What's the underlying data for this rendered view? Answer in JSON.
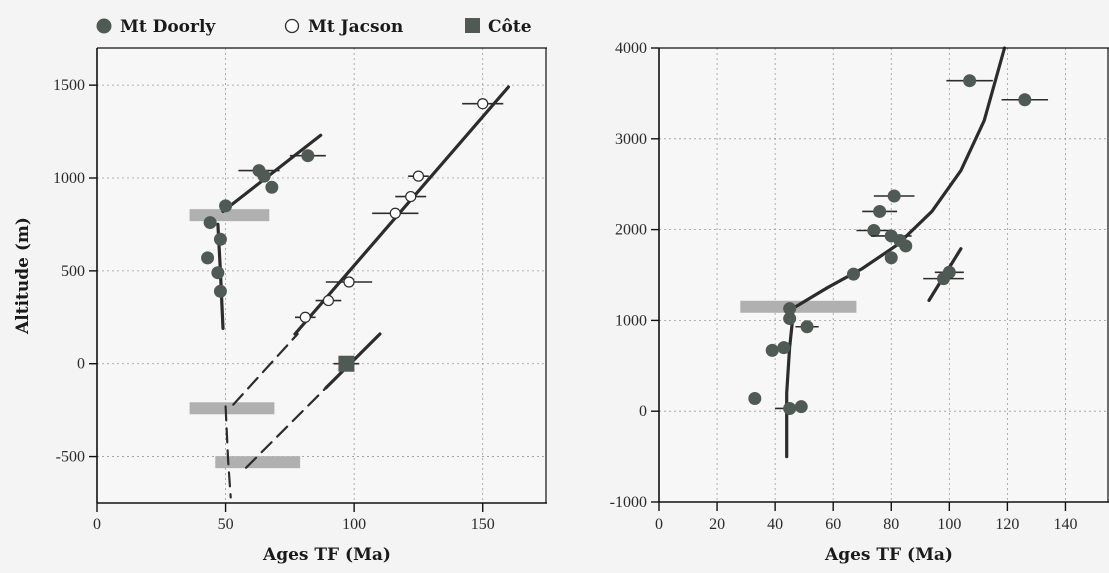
{
  "legend": [
    {
      "label": "Mt Doorly",
      "marker": "filled-circle"
    },
    {
      "label": "Mt Jacson",
      "marker": "open-circle"
    },
    {
      "label": "Côte",
      "marker": "filled-square"
    }
  ],
  "colors": {
    "point": "#4f5a55",
    "line": "#2c2c2c",
    "band": "#b0b0b0",
    "grid": "#9a9a9a"
  },
  "chart_data": [
    {
      "type": "scatter",
      "xlabel": "Ages TF (Ma)",
      "ylabel": "Altitude (m)",
      "xlim": [
        0,
        175
      ],
      "ylim": [
        -750,
        1700
      ],
      "xticks": [
        0,
        50,
        100,
        150
      ],
      "yticks": [
        -500,
        0,
        500,
        1000,
        1500
      ],
      "grid": true,
      "legend_position": "top",
      "series": [
        {
          "name": "Mt Doorly",
          "marker": "filled-circle",
          "points": [
            [
              63,
              1040,
              8
            ],
            [
              65,
              1010,
              0
            ],
            [
              68,
              950,
              0
            ],
            [
              82,
              1120,
              7
            ],
            [
              50,
              850,
              0
            ],
            [
              44,
              760,
              0
            ],
            [
              48,
              670,
              0
            ],
            [
              43,
              570,
              0
            ],
            [
              47,
              490,
              0
            ],
            [
              48,
              390,
              0
            ]
          ]
        },
        {
          "name": "Mt Jacson",
          "marker": "open-circle",
          "points": [
            [
              150,
              1400,
              8
            ],
            [
              125,
              1010,
              4
            ],
            [
              122,
              900,
              6
            ],
            [
              116,
              810,
              9
            ],
            [
              98,
              440,
              9
            ],
            [
              90,
              340,
              5
            ],
            [
              81,
              250,
              4
            ]
          ]
        },
        {
          "name": "Côte",
          "marker": "filled-square",
          "points": [
            [
              97,
              0,
              5
            ]
          ]
        }
      ],
      "bands": [
        [
          36,
          67,
          800
        ],
        [
          36,
          69,
          -240
        ],
        [
          46,
          79,
          -530
        ]
      ],
      "lines": [
        {
          "style": "solid",
          "points": [
            [
              49,
              190
            ],
            [
              48,
              500
            ],
            [
              47,
              750
            ]
          ]
        },
        {
          "style": "solid",
          "points": [
            [
              49,
              820
            ],
            [
              87,
              1230
            ]
          ]
        },
        {
          "style": "solid",
          "points": [
            [
              77,
              160
            ],
            [
              160,
              1490
            ]
          ]
        },
        {
          "style": "solid",
          "points": [
            [
              89,
              -130
            ],
            [
              110,
              160
            ]
          ]
        },
        {
          "style": "dashed",
          "points": [
            [
              53,
              -220
            ],
            [
              78,
              160
            ]
          ]
        },
        {
          "style": "dashed",
          "points": [
            [
              58,
              -560
            ],
            [
              89,
              -130
            ]
          ]
        },
        {
          "style": "dashed",
          "points": [
            [
              50,
              -230
            ],
            [
              51,
              -520
            ],
            [
              52,
              -720
            ]
          ]
        }
      ]
    },
    {
      "type": "scatter",
      "xlabel": "Ages TF (Ma)",
      "ylabel": "",
      "xlim": [
        0,
        155
      ],
      "ylim": [
        -1000,
        4000
      ],
      "xticks": [
        0,
        20,
        40,
        60,
        80,
        100,
        120,
        140
      ],
      "yticks": [
        -1000,
        0,
        1000,
        2000,
        3000,
        4000
      ],
      "grid": true,
      "series": [
        {
          "name": "",
          "marker": "filled-circle",
          "points": [
            [
              107,
              3640,
              8
            ],
            [
              126,
              3430,
              8
            ],
            [
              81,
              2370,
              7
            ],
            [
              76,
              2200,
              6
            ],
            [
              74,
              1990,
              6
            ],
            [
              80,
              1930,
              7
            ],
            [
              83,
              1880,
              0
            ],
            [
              85,
              1820,
              0
            ],
            [
              80,
              1690,
              0
            ],
            [
              67,
              1510,
              0
            ],
            [
              100,
              1530,
              5
            ],
            [
              98,
              1460,
              7
            ],
            [
              45,
              1130,
              0
            ],
            [
              45,
              1020,
              0
            ],
            [
              51,
              930,
              4
            ],
            [
              43,
              700,
              0
            ],
            [
              39,
              670,
              0
            ],
            [
              33,
              140,
              0
            ],
            [
              45,
              30,
              5
            ],
            [
              49,
              50,
              0
            ]
          ]
        }
      ],
      "bands": [
        [
          28,
          68,
          1150
        ]
      ],
      "lines": [
        {
          "style": "solid",
          "points": [
            [
              44,
              -500
            ],
            [
              44,
              200
            ],
            [
              45,
              700
            ],
            [
              46,
              1000
            ],
            [
              46,
              1130
            ]
          ]
        },
        {
          "style": "solid",
          "points": [
            [
              46,
              1130
            ],
            [
              58,
              1360
            ],
            [
              70,
              1570
            ],
            [
              82,
              1830
            ],
            [
              94,
              2200
            ],
            [
              104,
              2650
            ],
            [
              112,
              3200
            ],
            [
              119,
              4000
            ]
          ]
        },
        {
          "style": "solid",
          "points": [
            [
              93,
              1220
            ],
            [
              104,
              1790
            ]
          ]
        }
      ]
    }
  ]
}
